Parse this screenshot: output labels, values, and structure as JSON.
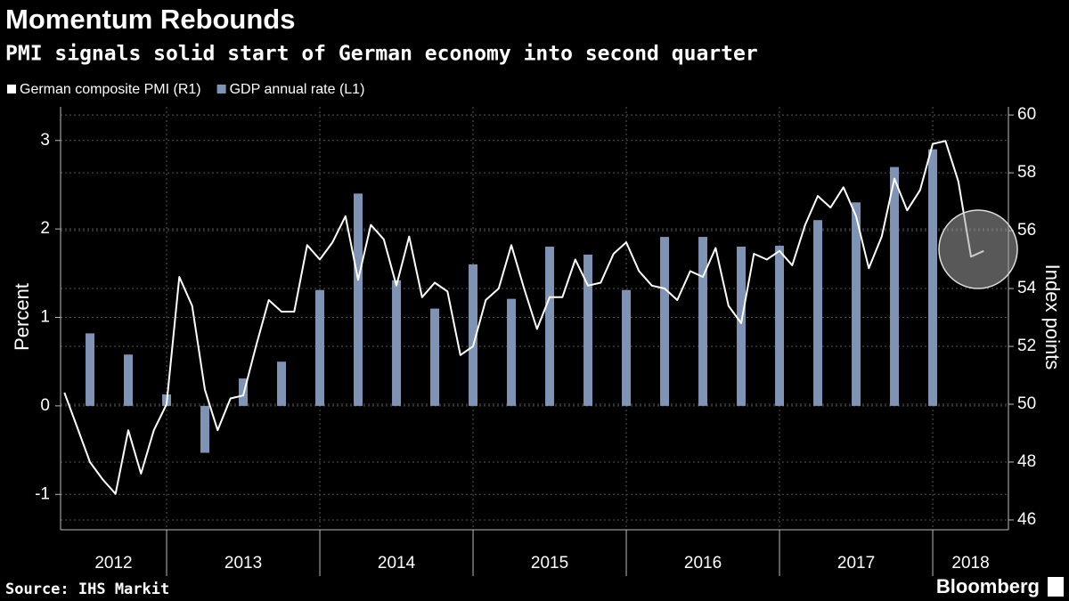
{
  "chart_data": {
    "type": "bar",
    "title": "Momentum Rebounds",
    "subtitle": "PMI signals solid start of German economy into second quarter",
    "ylabel": "Percent",
    "y2label": "Index points",
    "source": "Source: IHS Markit",
    "brand": "Bloomberg",
    "xlim": [
      2012.308,
      2018.494
    ],
    "xticks": [
      2013,
      2014,
      2015,
      2016,
      2017,
      2018
    ],
    "x_labels": [
      "2012",
      "2013",
      "2014",
      "2015",
      "2016",
      "2017",
      "2018"
    ],
    "ylim": [
      -1.4,
      3.38
    ],
    "yticks": [
      -1,
      0,
      1,
      2,
      3
    ],
    "y2lim": [
      45.66,
      60.28
    ],
    "y2ticks": [
      46,
      48,
      50,
      52,
      54,
      56,
      58,
      60
    ],
    "grid": true,
    "series": [
      {
        "name": "German composite PMI (R1)",
        "type": "line",
        "axis": "y2",
        "color": "#ffffff",
        "x": [
          2012.333,
          2012.417,
          2012.5,
          2012.583,
          2012.667,
          2012.75,
          2012.833,
          2012.917,
          2013,
          2013.083,
          2013.167,
          2013.25,
          2013.333,
          2013.417,
          2013.5,
          2013.583,
          2013.667,
          2013.75,
          2013.833,
          2013.917,
          2014,
          2014.083,
          2014.167,
          2014.25,
          2014.333,
          2014.417,
          2014.5,
          2014.583,
          2014.667,
          2014.75,
          2014.833,
          2014.917,
          2015,
          2015.083,
          2015.167,
          2015.25,
          2015.333,
          2015.417,
          2015.5,
          2015.583,
          2015.667,
          2015.75,
          2015.833,
          2015.917,
          2016,
          2016.083,
          2016.167,
          2016.25,
          2016.333,
          2016.417,
          2016.5,
          2016.583,
          2016.667,
          2016.75,
          2016.833,
          2016.917,
          2017,
          2017.083,
          2017.167,
          2017.25,
          2017.333,
          2017.417,
          2017.5,
          2017.583,
          2017.667,
          2017.75,
          2017.833,
          2017.917,
          2018,
          2018.083,
          2018.167,
          2018.25,
          2018.333
        ],
        "values": [
          50.4,
          49.2,
          48.0,
          47.4,
          46.9,
          49.1,
          47.6,
          49.1,
          50.0,
          54.4,
          53.4,
          50.5,
          49.1,
          50.2,
          50.3,
          52.0,
          53.6,
          53.2,
          53.2,
          55.5,
          55.0,
          55.6,
          56.5,
          54.3,
          56.2,
          55.7,
          54.1,
          55.8,
          53.7,
          54.2,
          53.9,
          51.7,
          52.0,
          53.6,
          54.0,
          55.5,
          54.0,
          52.6,
          53.7,
          53.7,
          55.0,
          54.1,
          54.2,
          55.2,
          55.6,
          54.6,
          54.1,
          54.0,
          53.6,
          54.6,
          54.4,
          55.4,
          53.4,
          52.8,
          55.2,
          55.0,
          55.3,
          54.8,
          56.2,
          57.2,
          56.8,
          57.5,
          56.5,
          54.7,
          55.8,
          57.8,
          56.7,
          57.4,
          59.0,
          59.1,
          57.7,
          55.1,
          55.3
        ]
      },
      {
        "name": "GDP annual rate (L1)",
        "type": "bar",
        "axis": "y",
        "color": "#7f93b4",
        "x": [
          2012.5,
          2012.75,
          2013,
          2013.25,
          2013.5,
          2013.75,
          2014,
          2014.25,
          2014.5,
          2014.75,
          2015,
          2015.25,
          2015.5,
          2015.75,
          2016,
          2016.25,
          2016.5,
          2016.75,
          2017,
          2017.25,
          2017.5,
          2017.75,
          2018
        ],
        "values": [
          0.82,
          0.58,
          0.13,
          -0.53,
          0.31,
          0.5,
          1.31,
          2.4,
          1.42,
          1.1,
          1.6,
          1.21,
          1.8,
          1.71,
          1.31,
          1.91,
          1.91,
          1.8,
          1.81,
          2.1,
          2.3,
          2.7,
          2.9
        ]
      }
    ]
  }
}
